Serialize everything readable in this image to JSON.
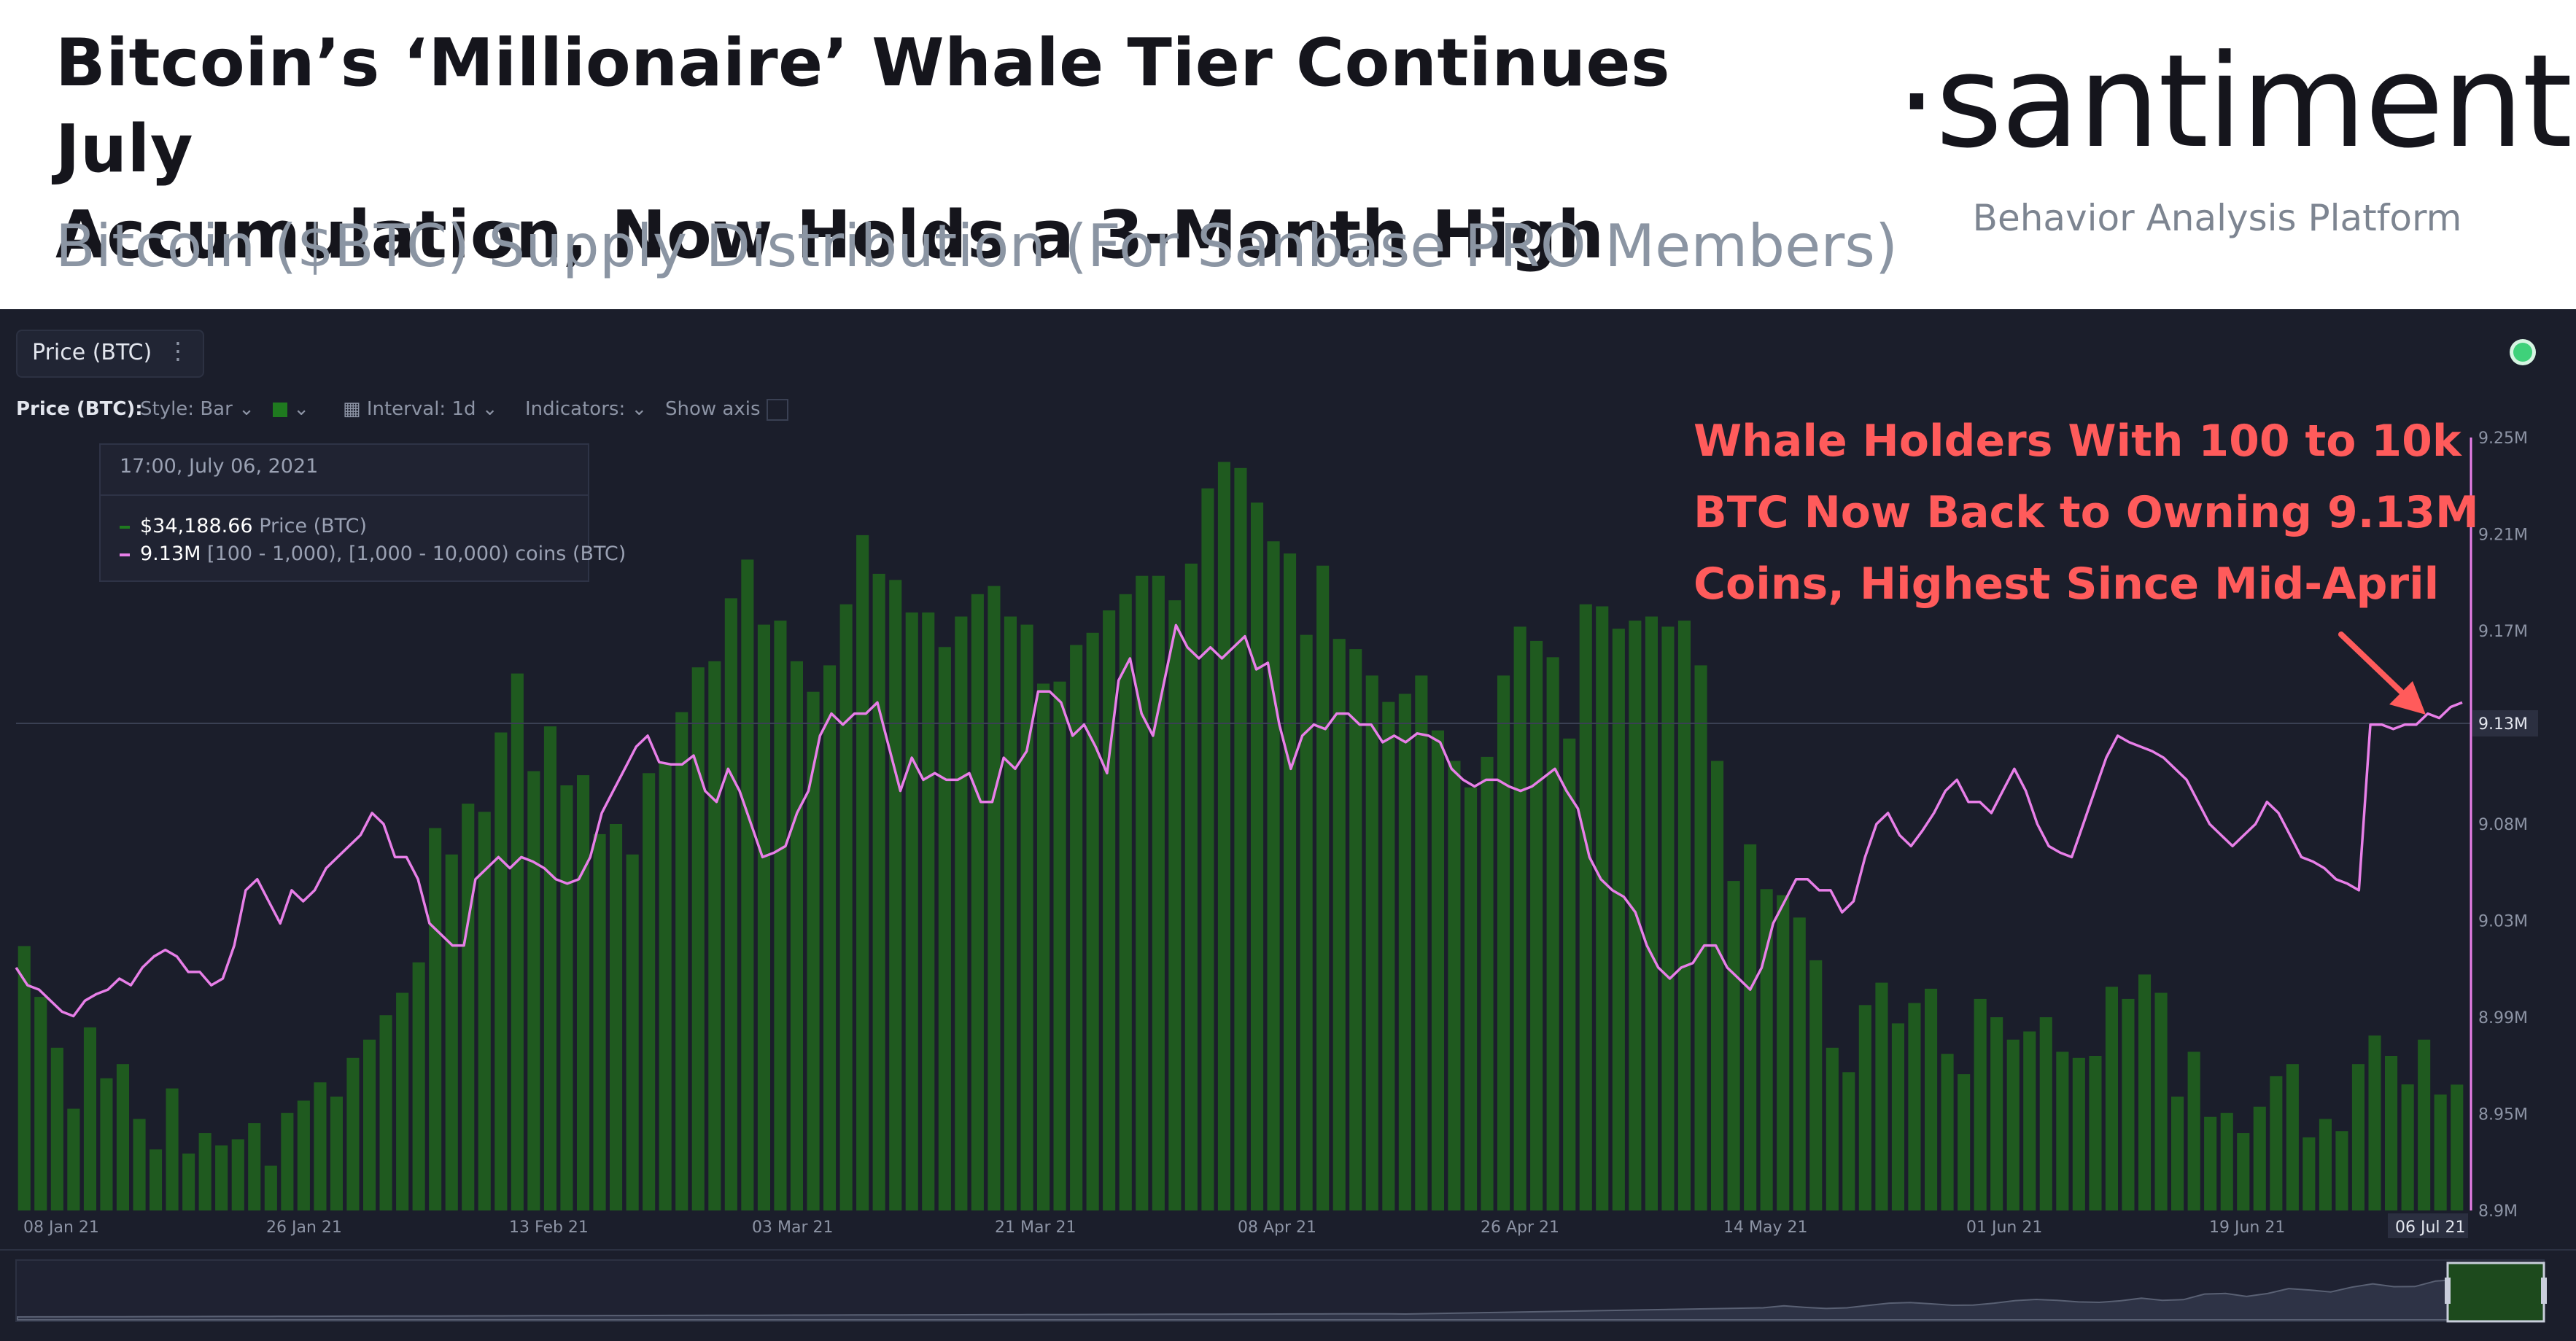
{
  "header": {
    "title_line1": "Bitcoin’s ‘Millionaire’ Whale Tier Continues July",
    "title_line2": "Accumulation, Now Holds a 3-Month High",
    "subtitle": "Bitcoin ($BTC) Supply Distribution (For Sanbase PRO Members)",
    "logo": "·santiment·",
    "tagline": "Behavior Analysis Platform"
  },
  "toolbar": {
    "tab_label": "Price (BTC)",
    "tab_menu_icon": "vertical-dots-icon",
    "price_label": "Price (BTC):",
    "style_label": "Style: Bar",
    "interval_label": "Interval: 1d",
    "indicators_label": "Indicators:",
    "show_axis_label": "Show axis",
    "status": "online"
  },
  "tooltip": {
    "time": "17:00, July 06, 2021",
    "price_value": "$34,188.66",
    "price_name": "Price (BTC)",
    "holders_value": "9.13M",
    "holders_name": "[100 - 1,000), [1,000 - 10,000) coins (BTC)"
  },
  "annotation": {
    "line1": "Whale Holders With 100 to 10k",
    "line2": "BTC Now Back to Owning 9.13M",
    "line3": "Coins, Highest Since Mid-April"
  },
  "colors": {
    "panel_bg": "#1b1e2b",
    "bar": "#1f5a1f",
    "line": "#e87fe8",
    "annotation": "#ff5b5b",
    "axis_text": "#8d94a5"
  },
  "chart_data": {
    "type": "bar",
    "x_start": "2021-01-08",
    "x_end": "2021-07-06",
    "x_tick_labels": [
      "08 Jan 21",
      "26 Jan 21",
      "13 Feb 21",
      "03 Mar 21",
      "21 Mar 21",
      "08 Apr 21",
      "26 Apr 21",
      "14 May 21",
      "01 Jun 21",
      "19 Jun 21"
    ],
    "current_x_label": "06 Jul 21",
    "right_axis_ticks": [
      "9.25M",
      "9.21M",
      "9.17M",
      "9.12M",
      "9.08M",
      "9.03M",
      "8.99M",
      "8.95M",
      "8.9M"
    ],
    "right_axis_ylim": [
      8.9,
      9.25
    ],
    "current_value_label": "9.13M",
    "grid": false,
    "series": [
      {
        "name": "Price (BTC)",
        "type": "bar",
        "unit": "USD",
        "ylim": [
          28000,
          66000
        ],
        "values": [
          41000,
          38500,
          36000,
          33000,
          37000,
          34500,
          35200,
          32500,
          31000,
          34000,
          30800,
          31800,
          31200,
          31500,
          32300,
          30200,
          32800,
          33400,
          34300,
          33600,
          35500,
          36400,
          37600,
          38700,
          40200,
          46800,
          45500,
          48000,
          47600,
          51500,
          54400,
          49600,
          51800,
          48900,
          49400,
          46500,
          47000,
          45500,
          49500,
          50000,
          52500,
          54700,
          55000,
          58100,
          60000,
          56800,
          57000,
          55000,
          53500,
          54800,
          57800,
          61200,
          59300,
          59000,
          57400,
          57400,
          55700,
          57200,
          58300,
          58700,
          57200,
          56800,
          53900,
          54000,
          55800,
          56400,
          57500,
          58300,
          59200,
          59200,
          58000,
          59800,
          63500,
          64800,
          64500,
          62800,
          60900,
          60300,
          56300,
          59700,
          56100,
          55600,
          54300,
          53000,
          53400,
          54300,
          51600,
          50100,
          48800,
          50300,
          54300,
          56700,
          56000,
          55200,
          51200,
          57800,
          57700,
          56600,
          57000,
          57200,
          56700,
          57000,
          54800,
          50100,
          44200,
          46000,
          43800,
          43500,
          42400,
          40300,
          36000,
          34800,
          38100,
          39200,
          37200,
          38200,
          38900,
          35700,
          34700,
          38400,
          37500,
          36400,
          36800,
          37500,
          35800,
          35500,
          35600,
          39000,
          38400,
          39600,
          38700,
          33600,
          35800,
          32600,
          32800,
          31800,
          33100,
          34600,
          35200,
          31600,
          32500,
          31900,
          35200,
          36600,
          35600,
          34200,
          36400,
          33700,
          34188
        ]
      },
      {
        "name": "[100 - 1,000), [1,000 - 10,000) coins (BTC)",
        "type": "line",
        "unit": "M coins",
        "values": [
          9.01,
          9.002,
          9.0,
          8.995,
          8.99,
          8.988,
          8.995,
          8.998,
          9.0,
          9.005,
          9.002,
          9.01,
          9.015,
          9.018,
          9.015,
          9.008,
          9.008,
          9.002,
          9.005,
          9.02,
          9.045,
          9.05,
          9.04,
          9.03,
          9.045,
          9.04,
          9.045,
          9.055,
          9.06,
          9.065,
          9.07,
          9.08,
          9.075,
          9.06,
          9.06,
          9.05,
          9.03,
          9.025,
          9.02,
          9.02,
          9.05,
          9.055,
          9.06,
          9.055,
          9.06,
          9.058,
          9.055,
          9.05,
          9.048,
          9.05,
          9.06,
          9.08,
          9.09,
          9.1,
          9.11,
          9.115,
          9.103,
          9.102,
          9.102,
          9.106,
          9.09,
          9.085,
          9.1,
          9.09,
          9.075,
          9.06,
          9.062,
          9.065,
          9.08,
          9.09,
          9.115,
          9.125,
          9.12,
          9.125,
          9.125,
          9.13,
          9.11,
          9.09,
          9.105,
          9.095,
          9.098,
          9.095,
          9.095,
          9.098,
          9.085,
          9.085,
          9.105,
          9.1,
          9.108,
          9.135,
          9.135,
          9.13,
          9.115,
          9.12,
          9.11,
          9.098,
          9.14,
          9.15,
          9.125,
          9.115,
          9.14,
          9.165,
          9.155,
          9.15,
          9.155,
          9.15,
          9.155,
          9.16,
          9.145,
          9.148,
          9.12,
          9.1,
          9.115,
          9.12,
          9.118,
          9.125,
          9.125,
          9.12,
          9.12,
          9.112,
          9.115,
          9.112,
          9.116,
          9.115,
          9.112,
          9.1,
          9.095,
          9.092,
          9.095,
          9.095,
          9.092,
          9.09,
          9.092,
          9.096,
          9.1,
          9.09,
          9.082,
          9.06,
          9.05,
          9.045,
          9.042,
          9.035,
          9.02,
          9.01,
          9.005,
          9.01,
          9.012,
          9.02,
          9.02,
          9.01,
          9.005,
          9.0,
          9.01,
          9.03,
          9.04,
          9.05,
          9.05,
          9.045,
          9.045,
          9.035,
          9.04,
          9.06,
          9.075,
          9.08,
          9.07,
          9.065,
          9.072,
          9.08,
          9.09,
          9.095,
          9.085,
          9.085,
          9.08,
          9.09,
          9.1,
          9.09,
          9.075,
          9.065,
          9.062,
          9.06,
          9.075,
          9.09,
          9.105,
          9.115,
          9.112,
          9.11,
          9.108,
          9.105,
          9.1,
          9.095,
          9.085,
          9.075,
          9.07,
          9.065,
          9.07,
          9.075,
          9.085,
          9.08,
          9.07,
          9.06,
          9.058,
          9.055,
          9.05,
          9.048,
          9.045,
          9.12,
          9.12,
          9.118,
          9.12,
          9.12,
          9.125,
          9.123,
          9.128,
          9.13
        ]
      }
    ]
  }
}
